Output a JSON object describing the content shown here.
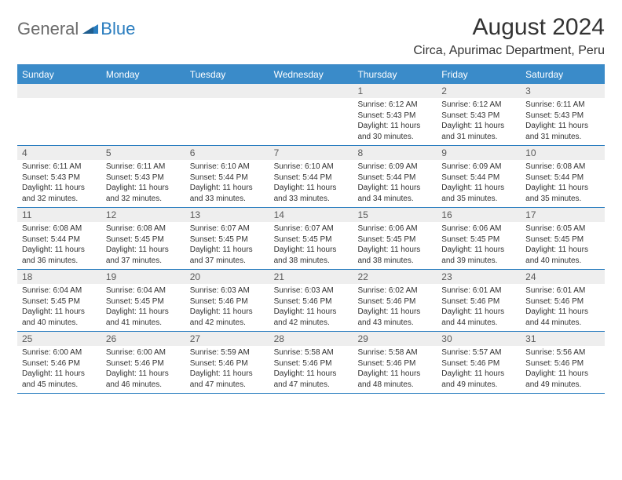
{
  "logo": {
    "part1": "General",
    "part2": "Blue"
  },
  "title": "August 2024",
  "location": "Circa, Apurimac Department, Peru",
  "colors": {
    "header_bg": "#3a8bc9",
    "border": "#2a7dbf",
    "daynum_bg": "#eeeeee",
    "text": "#333333",
    "logo_gray": "#6b6b6b",
    "logo_blue": "#2a7dbf"
  },
  "day_names": [
    "Sunday",
    "Monday",
    "Tuesday",
    "Wednesday",
    "Thursday",
    "Friday",
    "Saturday"
  ],
  "weeks": [
    [
      {
        "n": "",
        "sr": "",
        "ss": "",
        "dl": ""
      },
      {
        "n": "",
        "sr": "",
        "ss": "",
        "dl": ""
      },
      {
        "n": "",
        "sr": "",
        "ss": "",
        "dl": ""
      },
      {
        "n": "",
        "sr": "",
        "ss": "",
        "dl": ""
      },
      {
        "n": "1",
        "sr": "Sunrise: 6:12 AM",
        "ss": "Sunset: 5:43 PM",
        "dl": "Daylight: 11 hours and 30 minutes."
      },
      {
        "n": "2",
        "sr": "Sunrise: 6:12 AM",
        "ss": "Sunset: 5:43 PM",
        "dl": "Daylight: 11 hours and 31 minutes."
      },
      {
        "n": "3",
        "sr": "Sunrise: 6:11 AM",
        "ss": "Sunset: 5:43 PM",
        "dl": "Daylight: 11 hours and 31 minutes."
      }
    ],
    [
      {
        "n": "4",
        "sr": "Sunrise: 6:11 AM",
        "ss": "Sunset: 5:43 PM",
        "dl": "Daylight: 11 hours and 32 minutes."
      },
      {
        "n": "5",
        "sr": "Sunrise: 6:11 AM",
        "ss": "Sunset: 5:43 PM",
        "dl": "Daylight: 11 hours and 32 minutes."
      },
      {
        "n": "6",
        "sr": "Sunrise: 6:10 AM",
        "ss": "Sunset: 5:44 PM",
        "dl": "Daylight: 11 hours and 33 minutes."
      },
      {
        "n": "7",
        "sr": "Sunrise: 6:10 AM",
        "ss": "Sunset: 5:44 PM",
        "dl": "Daylight: 11 hours and 33 minutes."
      },
      {
        "n": "8",
        "sr": "Sunrise: 6:09 AM",
        "ss": "Sunset: 5:44 PM",
        "dl": "Daylight: 11 hours and 34 minutes."
      },
      {
        "n": "9",
        "sr": "Sunrise: 6:09 AM",
        "ss": "Sunset: 5:44 PM",
        "dl": "Daylight: 11 hours and 35 minutes."
      },
      {
        "n": "10",
        "sr": "Sunrise: 6:08 AM",
        "ss": "Sunset: 5:44 PM",
        "dl": "Daylight: 11 hours and 35 minutes."
      }
    ],
    [
      {
        "n": "11",
        "sr": "Sunrise: 6:08 AM",
        "ss": "Sunset: 5:44 PM",
        "dl": "Daylight: 11 hours and 36 minutes."
      },
      {
        "n": "12",
        "sr": "Sunrise: 6:08 AM",
        "ss": "Sunset: 5:45 PM",
        "dl": "Daylight: 11 hours and 37 minutes."
      },
      {
        "n": "13",
        "sr": "Sunrise: 6:07 AM",
        "ss": "Sunset: 5:45 PM",
        "dl": "Daylight: 11 hours and 37 minutes."
      },
      {
        "n": "14",
        "sr": "Sunrise: 6:07 AM",
        "ss": "Sunset: 5:45 PM",
        "dl": "Daylight: 11 hours and 38 minutes."
      },
      {
        "n": "15",
        "sr": "Sunrise: 6:06 AM",
        "ss": "Sunset: 5:45 PM",
        "dl": "Daylight: 11 hours and 38 minutes."
      },
      {
        "n": "16",
        "sr": "Sunrise: 6:06 AM",
        "ss": "Sunset: 5:45 PM",
        "dl": "Daylight: 11 hours and 39 minutes."
      },
      {
        "n": "17",
        "sr": "Sunrise: 6:05 AM",
        "ss": "Sunset: 5:45 PM",
        "dl": "Daylight: 11 hours and 40 minutes."
      }
    ],
    [
      {
        "n": "18",
        "sr": "Sunrise: 6:04 AM",
        "ss": "Sunset: 5:45 PM",
        "dl": "Daylight: 11 hours and 40 minutes."
      },
      {
        "n": "19",
        "sr": "Sunrise: 6:04 AM",
        "ss": "Sunset: 5:45 PM",
        "dl": "Daylight: 11 hours and 41 minutes."
      },
      {
        "n": "20",
        "sr": "Sunrise: 6:03 AM",
        "ss": "Sunset: 5:46 PM",
        "dl": "Daylight: 11 hours and 42 minutes."
      },
      {
        "n": "21",
        "sr": "Sunrise: 6:03 AM",
        "ss": "Sunset: 5:46 PM",
        "dl": "Daylight: 11 hours and 42 minutes."
      },
      {
        "n": "22",
        "sr": "Sunrise: 6:02 AM",
        "ss": "Sunset: 5:46 PM",
        "dl": "Daylight: 11 hours and 43 minutes."
      },
      {
        "n": "23",
        "sr": "Sunrise: 6:01 AM",
        "ss": "Sunset: 5:46 PM",
        "dl": "Daylight: 11 hours and 44 minutes."
      },
      {
        "n": "24",
        "sr": "Sunrise: 6:01 AM",
        "ss": "Sunset: 5:46 PM",
        "dl": "Daylight: 11 hours and 44 minutes."
      }
    ],
    [
      {
        "n": "25",
        "sr": "Sunrise: 6:00 AM",
        "ss": "Sunset: 5:46 PM",
        "dl": "Daylight: 11 hours and 45 minutes."
      },
      {
        "n": "26",
        "sr": "Sunrise: 6:00 AM",
        "ss": "Sunset: 5:46 PM",
        "dl": "Daylight: 11 hours and 46 minutes."
      },
      {
        "n": "27",
        "sr": "Sunrise: 5:59 AM",
        "ss": "Sunset: 5:46 PM",
        "dl": "Daylight: 11 hours and 47 minutes."
      },
      {
        "n": "28",
        "sr": "Sunrise: 5:58 AM",
        "ss": "Sunset: 5:46 PM",
        "dl": "Daylight: 11 hours and 47 minutes."
      },
      {
        "n": "29",
        "sr": "Sunrise: 5:58 AM",
        "ss": "Sunset: 5:46 PM",
        "dl": "Daylight: 11 hours and 48 minutes."
      },
      {
        "n": "30",
        "sr": "Sunrise: 5:57 AM",
        "ss": "Sunset: 5:46 PM",
        "dl": "Daylight: 11 hours and 49 minutes."
      },
      {
        "n": "31",
        "sr": "Sunrise: 5:56 AM",
        "ss": "Sunset: 5:46 PM",
        "dl": "Daylight: 11 hours and 49 minutes."
      }
    ]
  ]
}
